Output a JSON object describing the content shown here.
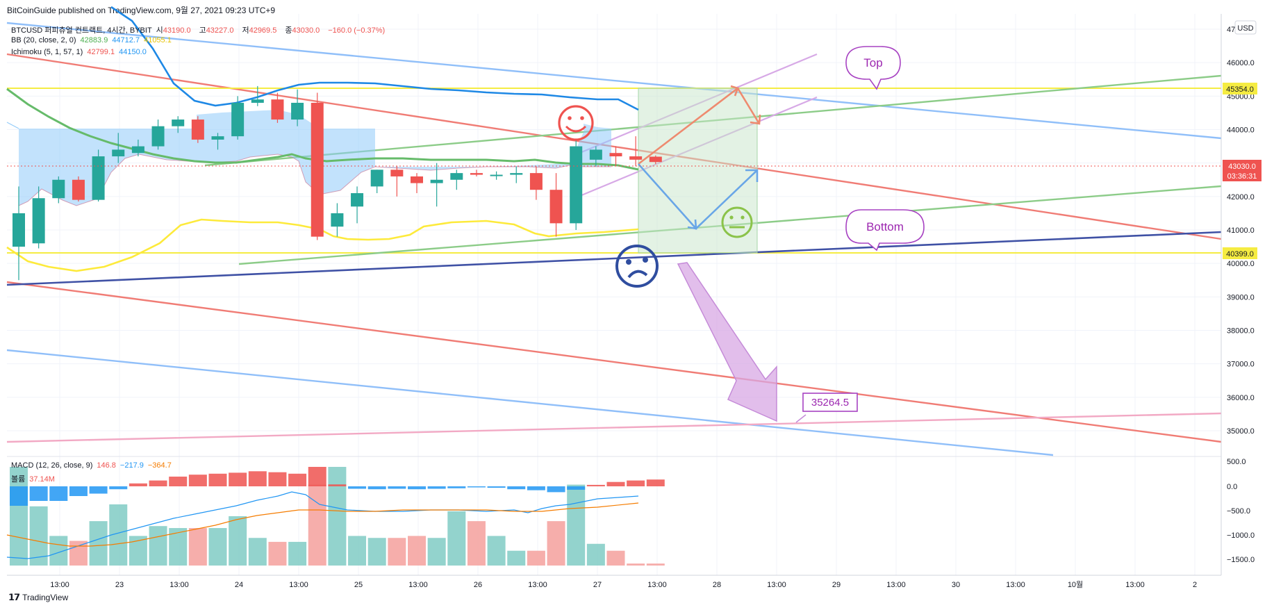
{
  "header": {
    "published": "BitCoinGuide published on TradingView.com, 9월 27, 2021 09:23 UTC+9"
  },
  "legend": {
    "symbol": "BTCUSD 퍼피츄얼 컨트랙트, 4시간, BYBIT",
    "ohlc": [
      {
        "label": "시",
        "value": "43190.0"
      },
      {
        "label": "고",
        "value": "43227.0"
      },
      {
        "label": "저",
        "value": "42969.5"
      },
      {
        "label": "종",
        "value": "43030.0"
      }
    ],
    "change": "−160.0 (−0.37%)",
    "bb": {
      "label": "BB (20, close, 2, 0)",
      "v1": "42883.9",
      "v2": "44712.7",
      "v3": "41055.1"
    },
    "ichimoku": {
      "label": "Ichimoku (5, 1, 57, 1)",
      "v1": "42799.1",
      "v2": "44150.0"
    },
    "macd": {
      "label": "MACD (12, 26, close, 9)",
      "v1": "146.8",
      "v2": "−217.9",
      "v3": "−364.7"
    },
    "volume": {
      "label": "볼륨",
      "value": "37.14M"
    }
  },
  "annotations": {
    "top": "Top",
    "bottom": "Bottom",
    "target": "35264.5"
  },
  "price_axis": {
    "currency": "USD",
    "ticks": [
      "47000.0",
      "46000.0",
      "45000.0",
      "44000.0",
      "43000.0",
      "42000.0",
      "41000.0",
      "40000.0",
      "39000.0",
      "38000.0",
      "37000.0",
      "36000.0",
      "35000.0"
    ],
    "tags": {
      "top_level": "45354.0",
      "last_price": "43030.0",
      "countdown": "03:36:31",
      "bottom_level": "40399.0"
    },
    "colors": {
      "up": "#26a69a",
      "down": "#ef5350",
      "level": "#f5ec42"
    }
  },
  "macd_axis": {
    "ticks": [
      "500.0",
      "0.0",
      "−500.0",
      "−1000.0",
      "−1500.0"
    ]
  },
  "time_axis": {
    "ticks": [
      "13:00",
      "23",
      "13:00",
      "24",
      "13:00",
      "25",
      "13:00",
      "26",
      "13:00",
      "27",
      "13:00",
      "28",
      "13:00",
      "29",
      "13:00",
      "30",
      "13:00",
      "10월",
      "13:00",
      "2"
    ]
  },
  "chart_data": {
    "type": "candlestick",
    "ylim": [
      34500,
      47500
    ],
    "candles": [
      {
        "o": 40500,
        "h": 42300,
        "l": 39500,
        "c": 41500
      },
      {
        "o": 40600,
        "h": 42300,
        "l": 40450,
        "c": 41950
      },
      {
        "o": 41950,
        "h": 42600,
        "l": 41800,
        "c": 42500
      },
      {
        "o": 42500,
        "h": 42600,
        "l": 41850,
        "c": 41900
      },
      {
        "o": 41900,
        "h": 43400,
        "l": 41850,
        "c": 43200
      },
      {
        "o": 43200,
        "h": 43900,
        "l": 43000,
        "c": 43400
      },
      {
        "o": 43300,
        "h": 43700,
        "l": 43200,
        "c": 43500
      },
      {
        "o": 43500,
        "h": 44300,
        "l": 43400,
        "c": 44100
      },
      {
        "o": 44100,
        "h": 44400,
        "l": 43900,
        "c": 44300
      },
      {
        "o": 44300,
        "h": 44400,
        "l": 43600,
        "c": 43700
      },
      {
        "o": 43700,
        "h": 43900,
        "l": 43400,
        "c": 43800
      },
      {
        "o": 43800,
        "h": 45000,
        "l": 43700,
        "c": 44800
      },
      {
        "o": 44800,
        "h": 45300,
        "l": 44700,
        "c": 44900
      },
      {
        "o": 44900,
        "h": 45100,
        "l": 44200,
        "c": 44300
      },
      {
        "o": 44300,
        "h": 45200,
        "l": 44100,
        "c": 44800
      },
      {
        "o": 44800,
        "h": 45100,
        "l": 40700,
        "c": 40800
      },
      {
        "o": 41100,
        "h": 41800,
        "l": 40800,
        "c": 41500
      },
      {
        "o": 41700,
        "h": 42300,
        "l": 41200,
        "c": 42100
      },
      {
        "o": 42300,
        "h": 42800,
        "l": 42100,
        "c": 42800
      },
      {
        "o": 42800,
        "h": 42900,
        "l": 42000,
        "c": 42600
      },
      {
        "o": 42600,
        "h": 42700,
        "l": 42100,
        "c": 42400
      },
      {
        "o": 42400,
        "h": 43000,
        "l": 41700,
        "c": 42500
      },
      {
        "o": 42500,
        "h": 42800,
        "l": 42200,
        "c": 42700
      },
      {
        "o": 42700,
        "h": 42800,
        "l": 42600,
        "c": 42650
      },
      {
        "o": 42650,
        "h": 42750,
        "l": 42500,
        "c": 42650
      },
      {
        "o": 42650,
        "h": 42900,
        "l": 42400,
        "c": 42700
      },
      {
        "o": 42700,
        "h": 42900,
        "l": 41900,
        "c": 42200
      },
      {
        "o": 42200,
        "h": 42700,
        "l": 40800,
        "c": 41200
      },
      {
        "o": 41200,
        "h": 43700,
        "l": 41000,
        "c": 43500
      },
      {
        "o": 43100,
        "h": 43500,
        "l": 42900,
        "c": 43400
      },
      {
        "o": 43300,
        "h": 43500,
        "l": 42900,
        "c": 43200
      },
      {
        "o": 43200,
        "h": 43800,
        "l": 42900,
        "c": 43100
      },
      {
        "o": 43190,
        "h": 43227,
        "l": 42969.5,
        "c": 43030
      }
    ],
    "levels": {
      "top": 45354,
      "bottom": 40399,
      "target": 35264.5
    },
    "macd_histogram": [
      -400,
      -300,
      -300,
      -200,
      -150,
      -60,
      60,
      120,
      200,
      240,
      260,
      280,
      310,
      290,
      260,
      400,
      40,
      -50,
      -60,
      -50,
      -60,
      -50,
      -40,
      -20,
      -30,
      -60,
      -80,
      -120,
      -70,
      30,
      90,
      120,
      140
    ],
    "volume_pct": [
      1.0,
      0.6,
      0.3,
      0.25,
      0.45,
      0.62,
      0.3,
      0.4,
      0.38,
      0.38,
      0.38,
      0.5,
      0.28,
      0.24,
      0.24,
      0.82,
      1.0,
      0.3,
      0.28,
      0.28,
      0.3,
      0.28,
      0.55,
      0.45,
      0.3,
      0.15,
      0.15,
      0.45,
      0.82,
      0.22,
      0.15,
      0.02,
      0.02
    ]
  }
}
